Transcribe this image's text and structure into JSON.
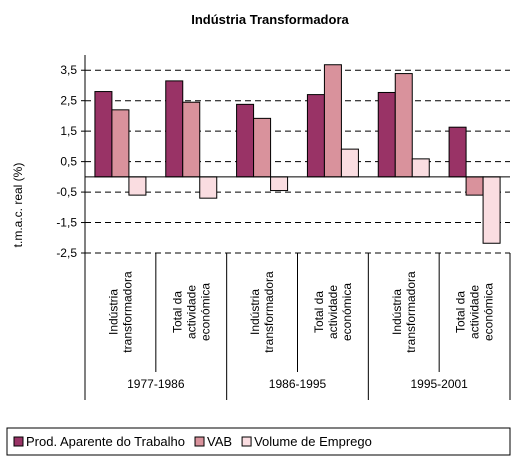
{
  "chart_data": {
    "type": "bar",
    "title": "Indústria Transformadora",
    "y_label": "t.m.a.c. real (%)",
    "categories": [
      [
        "Indústria",
        "transformadora"
      ],
      [
        "Total da",
        "actividade",
        "económica"
      ],
      [
        "Indústria",
        "transformadora"
      ],
      [
        "Total da",
        "actividade",
        "económica"
      ],
      [
        "Indústria",
        "transformadora"
      ],
      [
        "Total da",
        "actividade",
        "económica"
      ]
    ],
    "groups": [
      "1977-1986",
      "1986-1995",
      "1995-2001"
    ],
    "series": [
      {
        "name": "Prod. Aparente do Trabalho",
        "color": "#993366",
        "values": [
          2.8,
          3.15,
          2.38,
          2.7,
          2.77,
          1.63
        ]
      },
      {
        "name": "VAB",
        "color": "#d9929c",
        "values": [
          2.2,
          2.45,
          1.92,
          3.68,
          3.39,
          -0.6
        ]
      },
      {
        "name": "Volume de Emprego",
        "color": "#fadde1",
        "values": [
          -0.6,
          -0.7,
          -0.45,
          0.91,
          0.59,
          -2.18
        ]
      }
    ],
    "ylim": [
      -2.5,
      4
    ],
    "yticks": [
      {
        "value": -2.5,
        "label": "-2,5"
      },
      {
        "value": -1.5,
        "label": "-1,5"
      },
      {
        "value": -0.5,
        "label": "-0,5"
      },
      {
        "value": 0.5,
        "label": "0,5"
      },
      {
        "value": 1.5,
        "label": "1,5"
      },
      {
        "value": 2.5,
        "label": "2,5"
      },
      {
        "value": 3.5,
        "label": "3,5"
      }
    ],
    "grid": true,
    "legend": "bottom"
  }
}
